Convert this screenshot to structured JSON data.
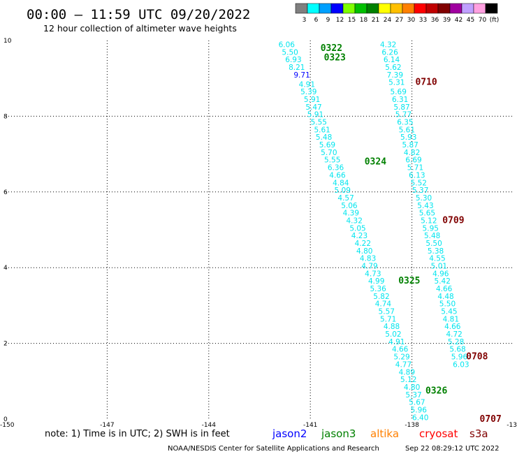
{
  "header": {
    "title": "00:00 – 11:59 UTC 09/20/2022",
    "subtitle": "12 hour collection of altimeter wave heights"
  },
  "colorbar": {
    "labels": [
      "3",
      "6",
      "9",
      "12",
      "15",
      "18",
      "21",
      "24",
      "27",
      "30",
      "33",
      "36",
      "39",
      "42",
      "45",
      "70",
      "(ft)"
    ],
    "colors": [
      "#7f7f7f",
      "#00ffff",
      "#00a0ff",
      "#0000ff",
      "#7fff00",
      "#00c000",
      "#008000",
      "#ffff00",
      "#ffc000",
      "#ff8000",
      "#ff0000",
      "#c00000",
      "#800000",
      "#a000a0",
      "#c0a0ff",
      "#ffa0e0",
      "#000000"
    ]
  },
  "footer": {
    "note": "note:  1) Time is in UTC;  2) SWH is in feet",
    "satellites": [
      {
        "name": "jason2",
        "color": "#0000ff"
      },
      {
        "name": "jason3",
        "color": "#008000"
      },
      {
        "name": "altika",
        "color": "#ff8000"
      },
      {
        "name": "cryosat",
        "color": "#ff0000"
      },
      {
        "name": "s3a",
        "color": "#800000"
      }
    ],
    "credit": "NOAA/NESDIS Center for Satellite Applications and Research",
    "timestamp": "Sep 22 08:29:12 UTC 2022"
  },
  "chart_data": {
    "type": "scatter",
    "xlim": [
      -150,
      -135
    ],
    "ylim": [
      0,
      10
    ],
    "x_tick_labels": [
      "-150",
      "-147",
      "-144",
      "-141",
      "-138",
      "-13"
    ],
    "y_tick_labels": [
      "0",
      "2",
      "4",
      "6",
      "8",
      "10"
    ],
    "grid": true,
    "pass_labels": [
      {
        "text": "0322",
        "x": -140.7,
        "y": 9.8,
        "color": "#008000"
      },
      {
        "text": "0323",
        "x": -140.6,
        "y": 9.55,
        "color": "#008000"
      },
      {
        "text": "0324",
        "x": -139.4,
        "y": 6.8,
        "color": "#008000"
      },
      {
        "text": "0325",
        "x": -138.4,
        "y": 3.65,
        "color": "#008000"
      },
      {
        "text": "0326",
        "x": -137.6,
        "y": 0.75,
        "color": "#008000"
      },
      {
        "text": "0710",
        "x": -137.9,
        "y": 8.9,
        "color": "#800000"
      },
      {
        "text": "0709",
        "x": -137.1,
        "y": 5.25,
        "color": "#800000"
      },
      {
        "text": "0708",
        "x": -136.4,
        "y": 1.65,
        "color": "#800000"
      },
      {
        "text": "0707",
        "x": -136.0,
        "y": 0.0,
        "color": "#800000"
      }
    ],
    "series": [
      {
        "name": "jason3",
        "color": "#00e5ee",
        "points": [
          {
            "x": -141.7,
            "y": 9.9,
            "v": "6.06"
          },
          {
            "x": -141.6,
            "y": 9.7,
            "v": "5.50"
          },
          {
            "x": -141.5,
            "y": 9.5,
            "v": "6.93"
          },
          {
            "x": -141.4,
            "y": 9.3,
            "v": "8.21"
          },
          {
            "x": -141.25,
            "y": 9.1,
            "v": "9.71",
            "color": "#0000ff"
          },
          {
            "x": -141.1,
            "y": 8.85,
            "v": "4.91"
          },
          {
            "x": -141.05,
            "y": 8.65,
            "v": "5.39"
          },
          {
            "x": -140.95,
            "y": 8.45,
            "v": "5.91"
          },
          {
            "x": -140.9,
            "y": 8.25,
            "v": "5.47"
          },
          {
            "x": -140.85,
            "y": 8.05,
            "v": "5.91"
          },
          {
            "x": -140.75,
            "y": 7.85,
            "v": "5.55"
          },
          {
            "x": -140.65,
            "y": 7.65,
            "v": "5.61"
          },
          {
            "x": -140.6,
            "y": 7.45,
            "v": "5.48"
          },
          {
            "x": -140.5,
            "y": 7.25,
            "v": "5.69"
          },
          {
            "x": -140.45,
            "y": 7.05,
            "v": "5.70"
          },
          {
            "x": -140.35,
            "y": 6.85,
            "v": "5.55"
          },
          {
            "x": -140.25,
            "y": 6.65,
            "v": "6.36"
          },
          {
            "x": -140.2,
            "y": 6.45,
            "v": "4.66"
          },
          {
            "x": -140.1,
            "y": 6.25,
            "v": "4.84"
          },
          {
            "x": -140.05,
            "y": 6.05,
            "v": "5.09"
          },
          {
            "x": -139.95,
            "y": 5.85,
            "v": "4.57"
          },
          {
            "x": -139.85,
            "y": 5.65,
            "v": "5.06"
          },
          {
            "x": -139.8,
            "y": 5.45,
            "v": "4.39"
          },
          {
            "x": -139.7,
            "y": 5.25,
            "v": "4.32"
          },
          {
            "x": -139.6,
            "y": 5.05,
            "v": "5.05"
          },
          {
            "x": -139.55,
            "y": 4.85,
            "v": "4.23"
          },
          {
            "x": -139.45,
            "y": 4.65,
            "v": "4.22"
          },
          {
            "x": -139.4,
            "y": 4.45,
            "v": "4.80"
          },
          {
            "x": -139.3,
            "y": 4.25,
            "v": "4.83"
          },
          {
            "x": -139.25,
            "y": 4.05,
            "v": "4.79"
          },
          {
            "x": -139.15,
            "y": 3.85,
            "v": "4.73"
          },
          {
            "x": -139.05,
            "y": 3.65,
            "v": "4.99"
          },
          {
            "x": -139.0,
            "y": 3.45,
            "v": "5.36"
          },
          {
            "x": -138.9,
            "y": 3.25,
            "v": "5.82"
          },
          {
            "x": -138.85,
            "y": 3.05,
            "v": "4.74"
          },
          {
            "x": -138.75,
            "y": 2.85,
            "v": "5.57"
          },
          {
            "x": -138.7,
            "y": 2.65,
            "v": "5.71"
          },
          {
            "x": -138.6,
            "y": 2.45,
            "v": "4.88"
          },
          {
            "x": -138.55,
            "y": 2.25,
            "v": "5.02"
          },
          {
            "x": -138.45,
            "y": 2.05,
            "v": "4.91"
          },
          {
            "x": -138.35,
            "y": 1.85,
            "v": "4.66"
          },
          {
            "x": -138.3,
            "y": 1.65,
            "v": "5.29"
          },
          {
            "x": -138.25,
            "y": 1.45,
            "v": "4.77"
          },
          {
            "x": -138.15,
            "y": 1.25,
            "v": "4.89"
          },
          {
            "x": -138.1,
            "y": 1.05,
            "v": "5.12"
          },
          {
            "x": -138.0,
            "y": 0.85,
            "v": "4.80"
          },
          {
            "x": -137.95,
            "y": 0.65,
            "v": "5.37"
          },
          {
            "x": -137.85,
            "y": 0.45,
            "v": "5.67"
          },
          {
            "x": -137.8,
            "y": 0.25,
            "v": "5.96"
          },
          {
            "x": -137.75,
            "y": 0.05,
            "v": "6.40"
          }
        ]
      },
      {
        "name": "s3a",
        "color": "#00e5ee",
        "points": [
          {
            "x": -138.7,
            "y": 9.9,
            "v": "4.32"
          },
          {
            "x": -138.65,
            "y": 9.7,
            "v": "6.26"
          },
          {
            "x": -138.6,
            "y": 9.5,
            "v": "6.14"
          },
          {
            "x": -138.55,
            "y": 9.3,
            "v": "5.62"
          },
          {
            "x": -138.5,
            "y": 9.1,
            "v": "7.39"
          },
          {
            "x": -138.45,
            "y": 8.9,
            "v": "5.31"
          },
          {
            "x": -138.4,
            "y": 8.65,
            "v": "5.69"
          },
          {
            "x": -138.35,
            "y": 8.45,
            "v": "6.31"
          },
          {
            "x": -138.3,
            "y": 8.25,
            "v": "5.87"
          },
          {
            "x": -138.25,
            "y": 8.05,
            "v": "5.77"
          },
          {
            "x": -138.2,
            "y": 7.85,
            "v": "6.35"
          },
          {
            "x": -138.15,
            "y": 7.65,
            "v": "5.61"
          },
          {
            "x": -138.1,
            "y": 7.45,
            "v": "5.93"
          },
          {
            "x": -138.05,
            "y": 7.25,
            "v": "5.87"
          },
          {
            "x": -138.0,
            "y": 7.05,
            "v": "4.82"
          },
          {
            "x": -137.95,
            "y": 6.85,
            "v": "6.69"
          },
          {
            "x": -137.9,
            "y": 6.65,
            "v": "5.71"
          },
          {
            "x": -137.85,
            "y": 6.45,
            "v": "6.13"
          },
          {
            "x": -137.8,
            "y": 6.25,
            "v": "5.52"
          },
          {
            "x": -137.75,
            "y": 6.05,
            "v": "5.37"
          },
          {
            "x": -137.65,
            "y": 5.85,
            "v": "5.30"
          },
          {
            "x": -137.6,
            "y": 5.65,
            "v": "5.43"
          },
          {
            "x": -137.55,
            "y": 5.45,
            "v": "5.65"
          },
          {
            "x": -137.5,
            "y": 5.25,
            "v": "5.12"
          },
          {
            "x": -137.45,
            "y": 5.05,
            "v": "5.95"
          },
          {
            "x": -137.4,
            "y": 4.85,
            "v": "5.48"
          },
          {
            "x": -137.35,
            "y": 4.65,
            "v": "5.50"
          },
          {
            "x": -137.3,
            "y": 4.45,
            "v": "5.38"
          },
          {
            "x": -137.25,
            "y": 4.25,
            "v": "4.55"
          },
          {
            "x": -137.2,
            "y": 4.05,
            "v": "5.01"
          },
          {
            "x": -137.15,
            "y": 3.85,
            "v": "4.96"
          },
          {
            "x": -137.1,
            "y": 3.65,
            "v": "5.42"
          },
          {
            "x": -137.05,
            "y": 3.45,
            "v": "4.66"
          },
          {
            "x": -137.0,
            "y": 3.25,
            "v": "4.48"
          },
          {
            "x": -136.95,
            "y": 3.05,
            "v": "5.50"
          },
          {
            "x": -136.9,
            "y": 2.85,
            "v": "5.45"
          },
          {
            "x": -136.85,
            "y": 2.65,
            "v": "4.81"
          },
          {
            "x": -136.8,
            "y": 2.45,
            "v": "4.66"
          },
          {
            "x": -136.75,
            "y": 2.25,
            "v": "4.72"
          },
          {
            "x": -136.7,
            "y": 2.05,
            "v": "5.28"
          },
          {
            "x": -136.65,
            "y": 1.85,
            "v": "5.68"
          },
          {
            "x": -136.6,
            "y": 1.65,
            "v": "5.96"
          },
          {
            "x": -136.55,
            "y": 1.45,
            "v": "6.03"
          }
        ]
      }
    ]
  }
}
